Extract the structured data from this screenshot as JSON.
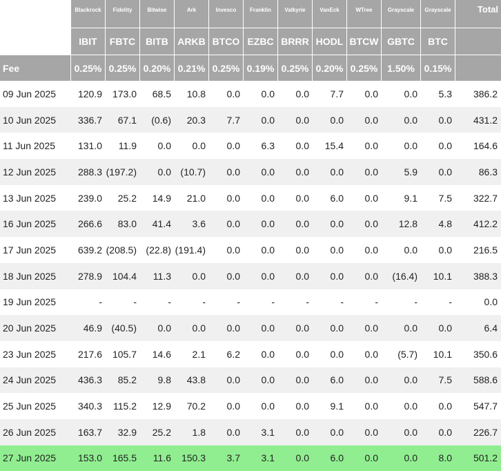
{
  "header": {
    "issuers": [
      "Blackrock",
      "Fidelity",
      "Bitwise",
      "Ark",
      "Invesco",
      "Franklin",
      "Valkyrie",
      "VanEck",
      "WTree",
      "Grayscale",
      "Grayscale"
    ],
    "total_label": "Total",
    "tickers": [
      "IBIT",
      "FBTC",
      "BITB",
      "ARKB",
      "BTCO",
      "EZBC",
      "BRRR",
      "HODL",
      "BTCW",
      "GBTC",
      "BTC"
    ],
    "fee_label": "Fee",
    "fees": [
      "0.25%",
      "0.25%",
      "0.20%",
      "0.21%",
      "0.25%",
      "0.19%",
      "0.25%",
      "0.20%",
      "0.25%",
      "1.50%",
      "0.15%"
    ]
  },
  "rows": [
    {
      "date": "09 Jun 2025",
      "values": [
        "120.9",
        "173.0",
        "68.5",
        "10.8",
        "0.0",
        "0.0",
        "0.0",
        "7.7",
        "0.0",
        "0.0",
        "5.3"
      ],
      "total": "386.2"
    },
    {
      "date": "10 Jun 2025",
      "values": [
        "336.7",
        "67.1",
        "(0.6)",
        "20.3",
        "7.7",
        "0.0",
        "0.0",
        "0.0",
        "0.0",
        "0.0",
        "0.0"
      ],
      "total": "431.2"
    },
    {
      "date": "11 Jun 2025",
      "values": [
        "131.0",
        "11.9",
        "0.0",
        "0.0",
        "0.0",
        "6.3",
        "0.0",
        "15.4",
        "0.0",
        "0.0",
        "0.0"
      ],
      "total": "164.6"
    },
    {
      "date": "12 Jun 2025",
      "values": [
        "288.3",
        "(197.2)",
        "0.0",
        "(10.7)",
        "0.0",
        "0.0",
        "0.0",
        "0.0",
        "0.0",
        "5.9",
        "0.0"
      ],
      "total": "86.3"
    },
    {
      "date": "13 Jun 2025",
      "values": [
        "239.0",
        "25.2",
        "14.9",
        "21.0",
        "0.0",
        "0.0",
        "0.0",
        "6.0",
        "0.0",
        "9.1",
        "7.5"
      ],
      "total": "322.7"
    },
    {
      "date": "16 Jun 2025",
      "values": [
        "266.6",
        "83.0",
        "41.4",
        "3.6",
        "0.0",
        "0.0",
        "0.0",
        "0.0",
        "0.0",
        "12.8",
        "4.8"
      ],
      "total": "412.2"
    },
    {
      "date": "17 Jun 2025",
      "values": [
        "639.2",
        "(208.5)",
        "(22.8)",
        "(191.4)",
        "0.0",
        "0.0",
        "0.0",
        "0.0",
        "0.0",
        "0.0",
        "0.0"
      ],
      "total": "216.5"
    },
    {
      "date": "18 Jun 2025",
      "values": [
        "278.9",
        "104.4",
        "11.3",
        "0.0",
        "0.0",
        "0.0",
        "0.0",
        "0.0",
        "0.0",
        "(16.4)",
        "10.1"
      ],
      "total": "388.3"
    },
    {
      "date": "19 Jun 2025",
      "values": [
        "-",
        "-",
        "-",
        "-",
        "-",
        "-",
        "-",
        "-",
        "-",
        "-",
        "-"
      ],
      "total": "0.0"
    },
    {
      "date": "20 Jun 2025",
      "values": [
        "46.9",
        "(40.5)",
        "0.0",
        "0.0",
        "0.0",
        "0.0",
        "0.0",
        "0.0",
        "0.0",
        "0.0",
        "0.0"
      ],
      "total": "6.4"
    },
    {
      "date": "23 Jun 2025",
      "values": [
        "217.6",
        "105.7",
        "14.6",
        "2.1",
        "6.2",
        "0.0",
        "0.0",
        "0.0",
        "0.0",
        "(5.7)",
        "10.1"
      ],
      "total": "350.6"
    },
    {
      "date": "24 Jun 2025",
      "values": [
        "436.3",
        "85.2",
        "9.8",
        "43.8",
        "0.0",
        "0.0",
        "0.0",
        "6.0",
        "0.0",
        "0.0",
        "7.5"
      ],
      "total": "588.6"
    },
    {
      "date": "25 Jun 2025",
      "values": [
        "340.3",
        "115.2",
        "12.9",
        "70.2",
        "0.0",
        "0.0",
        "0.0",
        "9.1",
        "0.0",
        "0.0",
        "0.0"
      ],
      "total": "547.7"
    },
    {
      "date": "26 Jun 2025",
      "values": [
        "163.7",
        "32.9",
        "25.2",
        "1.8",
        "0.0",
        "3.1",
        "0.0",
        "0.0",
        "0.0",
        "0.0",
        "0.0"
      ],
      "total": "226.7"
    },
    {
      "date": "27 Jun 2025",
      "values": [
        "153.0",
        "165.5",
        "11.6",
        "150.3",
        "3.7",
        "3.1",
        "0.0",
        "6.0",
        "0.0",
        "0.0",
        "8.0"
      ],
      "total": "501.2"
    }
  ],
  "colors": {
    "header_bg": "#a6a6a6",
    "highlight_row": "#90ee90",
    "negative": "#e00000",
    "stripe": "#f0f0f0"
  }
}
